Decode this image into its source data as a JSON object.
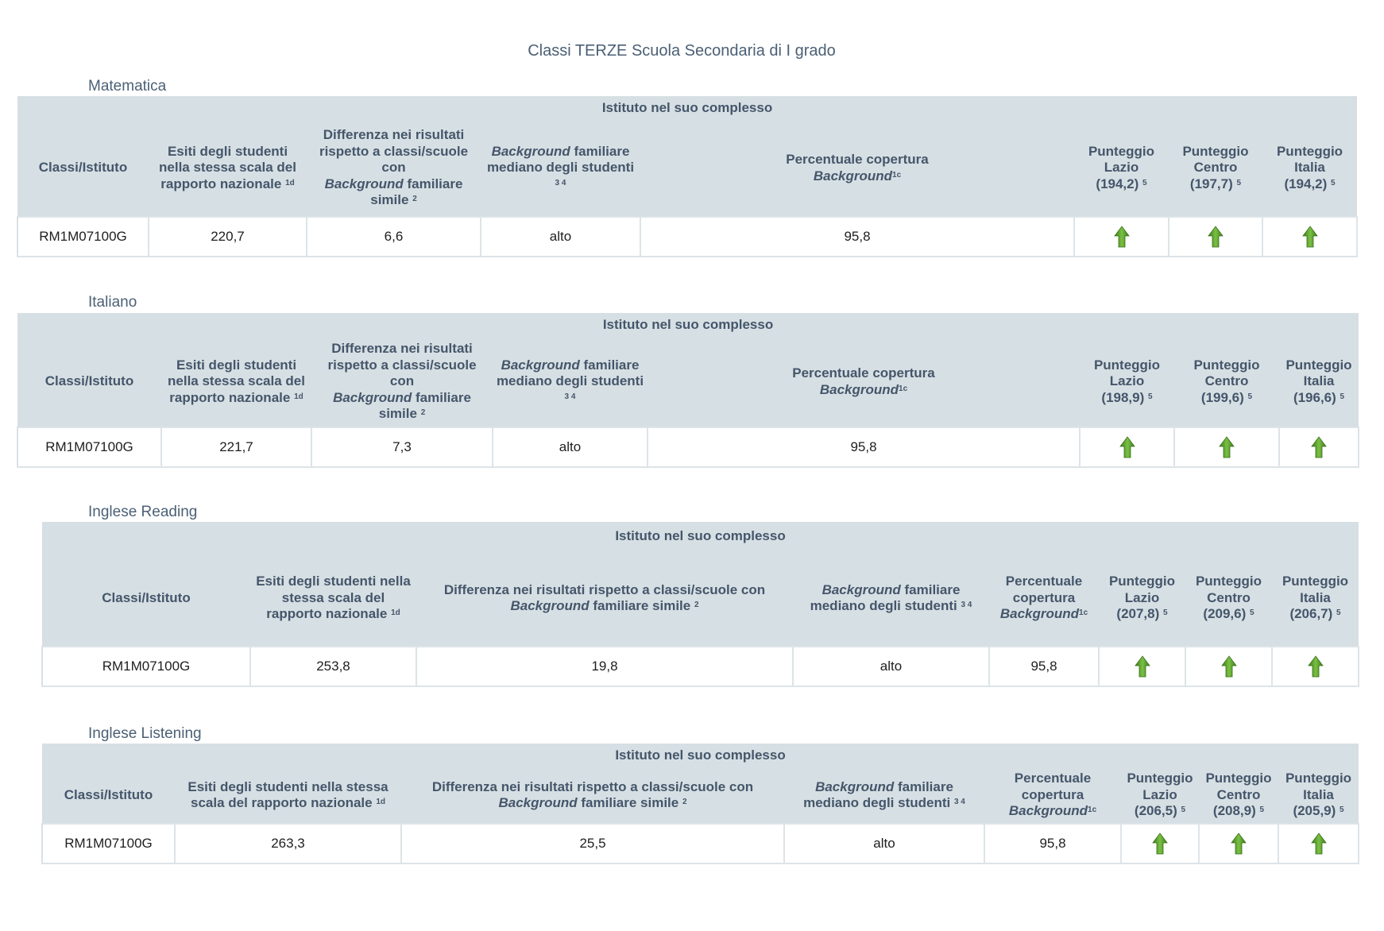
{
  "page": {
    "title": "Classi TERZE Scuola Secondaria di I grado"
  },
  "common": {
    "group_header": "Istituto nel suo complesso",
    "col_classi": "Classi/Istituto",
    "esiti_a": "Esiti degli studenti nella stessa scala del rapporto nazionale",
    "sup_1d": "1d",
    "diff_a": "Differenza nei risultati rispetto a classi/scuole con",
    "background": "Background",
    "familiare_simile": "familiare simile",
    "sup_2": "2",
    "familiare": "familiare",
    "mediano": "mediano degli studenti",
    "sup_34": "3 4",
    "perc": "Percentuale copertura",
    "sup_1c": "1c",
    "punteggio": "Punteggio",
    "sup_5": "5",
    "arrow_icon": "green-up-arrow-icon",
    "colors": {
      "header_bg": "#d6dfe3",
      "header_text": "#45566b",
      "arrow": "#5c9e2e"
    }
  },
  "sections": [
    {
      "label": "Matematica",
      "regions": [
        {
          "name": "Lazio",
          "score": "(194,2)"
        },
        {
          "name": "Centro",
          "score": "(197,7)"
        },
        {
          "name": "Italia",
          "score": "(194,2)"
        }
      ],
      "row": {
        "classe": "RM1M07100G",
        "esiti": "220,7",
        "differenza": "6,6",
        "background": "alto",
        "percentuale": "95,8",
        "arrows": [
          "up",
          "up",
          "up"
        ]
      }
    },
    {
      "label": "Italiano",
      "regions": [
        {
          "name": "Lazio",
          "score": "(198,9)"
        },
        {
          "name": "Centro",
          "score": "(199,6)"
        },
        {
          "name": "Italia",
          "score": "(196,6)"
        }
      ],
      "row": {
        "classe": "RM1M07100G",
        "esiti": "221,7",
        "differenza": "7,3",
        "background": "alto",
        "percentuale": "95,8",
        "arrows": [
          "up",
          "up",
          "up"
        ]
      }
    },
    {
      "label": "Inglese Reading",
      "regions": [
        {
          "name": "Lazio",
          "score": "(207,8)"
        },
        {
          "name": "Centro",
          "score": "(209,6)"
        },
        {
          "name": "Italia",
          "score": "(206,7)"
        }
      ],
      "row": {
        "classe": "RM1M07100G",
        "esiti": "253,8",
        "differenza": "19,8",
        "background": "alto",
        "percentuale": "95,8",
        "arrows": [
          "up",
          "up",
          "up"
        ]
      }
    },
    {
      "label": "Inglese Listening",
      "regions": [
        {
          "name": "Lazio",
          "score": "(206,5)"
        },
        {
          "name": "Centro",
          "score": "(208,9)"
        },
        {
          "name": "Italia",
          "score": "(205,9)"
        }
      ],
      "row": {
        "classe": "RM1M07100G",
        "esiti": "263,3",
        "differenza": "25,5",
        "background": "alto",
        "percentuale": "95,8",
        "arrows": [
          "up",
          "up",
          "up"
        ]
      }
    }
  ]
}
